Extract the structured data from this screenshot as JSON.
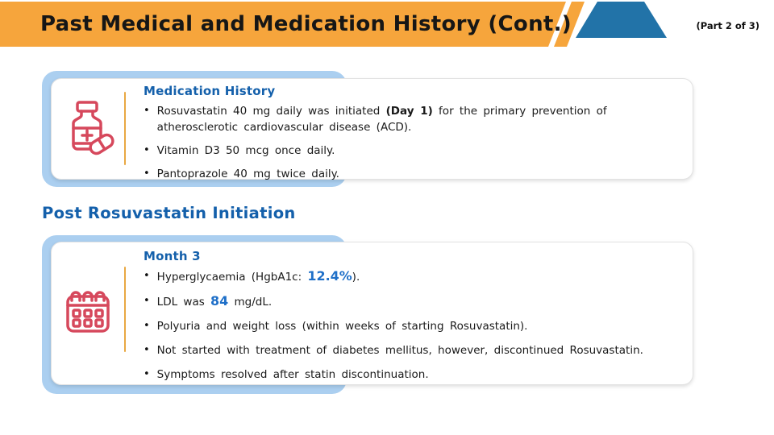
{
  "header": {
    "title": "Past Medical and Medication History (Cont.)",
    "part_label": "(Part 2 of 3)"
  },
  "section_heading": "Post Rosuvastatin Initiation",
  "cards": [
    {
      "name": "medication-history",
      "icon": "pill-bottle-icon",
      "heading": "Medication History",
      "bullets": [
        [
          {
            "t": "Rosuvastatin 40 mg daily was initiated "
          },
          {
            "t": "(Day 1)",
            "s": "bold"
          },
          {
            "t": " for the primary prevention of atherosclerotic cardiovascular disease (ACD)."
          }
        ],
        [
          {
            "t": "Vitamin D3 50 mcg once daily."
          }
        ],
        [
          {
            "t": "Pantoprazole 40 mg twice daily."
          }
        ]
      ]
    },
    {
      "name": "month-3",
      "icon": "calendar-icon",
      "heading": "Month 3",
      "bullets": [
        [
          {
            "t": "Hyperglycaemia (HgbA1c: "
          },
          {
            "t": "12.4%",
            "s": "blue"
          },
          {
            "t": ")."
          }
        ],
        [
          {
            "t": "LDL was "
          },
          {
            "t": "84",
            "s": "blue"
          },
          {
            "t": " mg/dL."
          }
        ],
        [
          {
            "t": "Polyuria and weight loss (within weeks of starting Rosuvastatin)."
          }
        ],
        [
          {
            "t": "Not started with treatment of diabetes mellitus, however, discontinued Rosuvastatin."
          }
        ],
        [
          {
            "t": "Symptoms resolved after statin discontinuation."
          }
        ]
      ]
    }
  ],
  "colors": {
    "header_orange": "#F6A53C",
    "header_blue": "#2273A8",
    "heading_blue": "#1460AB",
    "value_blue": "#1E6FC8",
    "icon_red": "#D6485C",
    "card_accent_blue": "#ABCFF0",
    "divider_orange": "#E9A843",
    "text_dark": "#1A1A1A"
  }
}
